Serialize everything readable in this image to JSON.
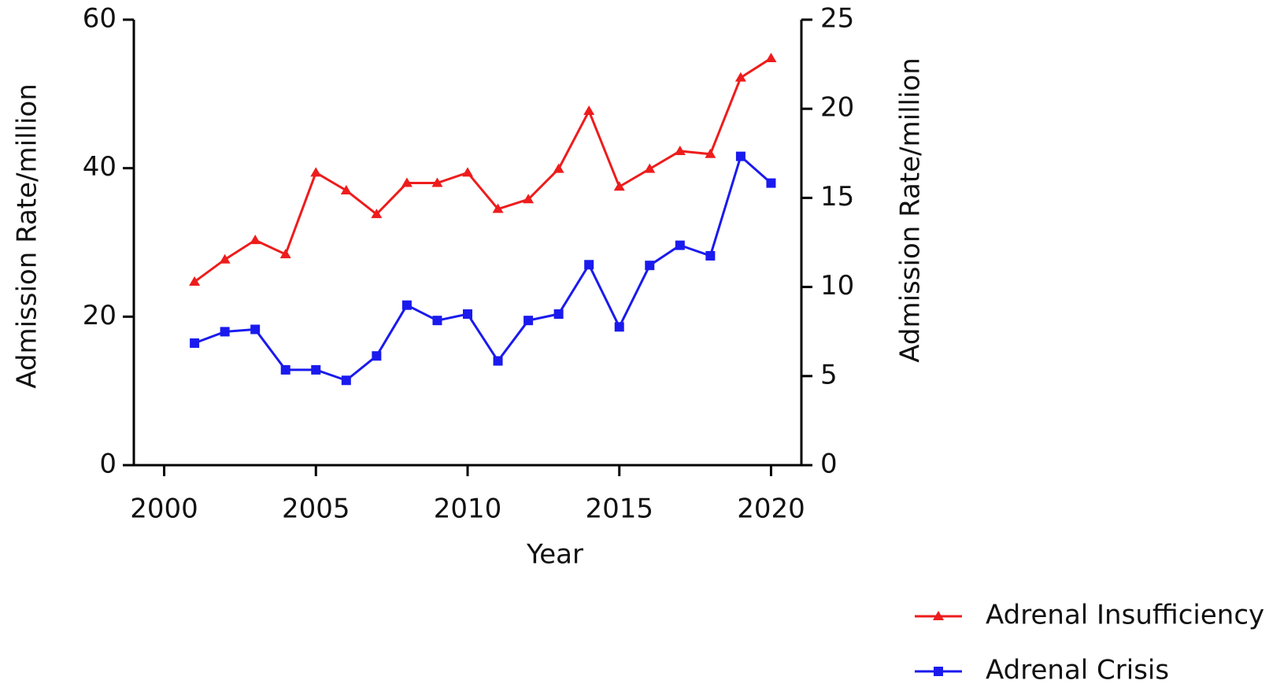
{
  "chart_data": {
    "type": "line",
    "xlabel": "Year",
    "ylabel": "Admission Rate/million",
    "y2label": "Admission Rate/million",
    "x": [
      2001,
      2002,
      2003,
      2004,
      2005,
      2006,
      2007,
      2008,
      2009,
      2010,
      2011,
      2012,
      2013,
      2014,
      2015,
      2016,
      2017,
      2018,
      2019,
      2020
    ],
    "xlim": [
      1999,
      2021
    ],
    "xticks": [
      2000,
      2005,
      2010,
      2015,
      2020
    ],
    "ylim": [
      0,
      60
    ],
    "yticks": [
      0,
      20,
      40,
      60
    ],
    "y2lim": [
      0,
      25
    ],
    "y2ticks": [
      0,
      5,
      10,
      15,
      20,
      25
    ],
    "legend": "bottom-right",
    "series": [
      {
        "name": "Adrenal Insufficiency",
        "color": "#ee1c1c",
        "marker": "triangle",
        "axis": "y",
        "values": [
          24.7,
          27.7,
          30.3,
          28.4,
          39.4,
          37.0,
          33.8,
          38.0,
          38.0,
          39.4,
          34.5,
          35.8,
          39.9,
          47.7,
          37.5,
          39.9,
          42.3,
          41.9,
          52.2,
          54.8
        ]
      },
      {
        "name": "Adrenal Crisis",
        "color": "#1a1aee",
        "marker": "square",
        "axis": "y2",
        "values": [
          6.85,
          7.49,
          7.62,
          5.35,
          5.35,
          4.76,
          6.13,
          8.98,
          8.12,
          8.48,
          5.85,
          8.12,
          8.48,
          11.25,
          7.76,
          11.21,
          12.34,
          11.75,
          17.33,
          15.83
        ]
      }
    ]
  }
}
